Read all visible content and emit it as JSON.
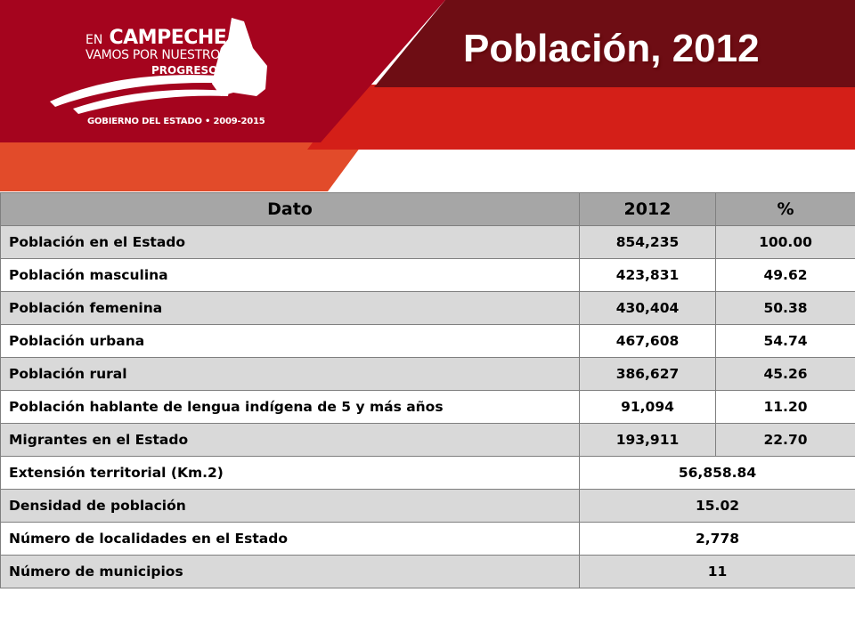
{
  "header": {
    "title": "Población, 2012",
    "logo": {
      "en": "EN",
      "campeche": "CAMPECHE",
      "line2": "VAMOS POR NUESTRO",
      "line3": "PROGRESO",
      "gobierno": "GOBIERNO DEL ESTADO • 2009-2015"
    }
  },
  "colors": {
    "dark_red": "#a5041e",
    "maroon": "#6e0d14",
    "bright_red": "#d41f18",
    "orange": "#e24b2a",
    "header_cell": "#a6a6a6",
    "row_shade": "#d9d9d9"
  },
  "table": {
    "headers": [
      "Dato",
      "2012",
      "%"
    ],
    "rows": [
      {
        "label": "Población en el  Estado",
        "value": "854,235",
        "pct": "100.00"
      },
      {
        "label": "Población masculina",
        "value": "423,831",
        "pct": "49.62"
      },
      {
        "label": "Población femenina",
        "value": "430,404",
        "pct": "50.38"
      },
      {
        "label": "Población urbana",
        "value": "467,608",
        "pct": "54.74"
      },
      {
        "label": "Población rural",
        "value": "386,627",
        "pct": "45.26"
      },
      {
        "label": "Población hablante de lengua indígena de 5 y más años",
        "value": "91,094",
        "pct": "11.20"
      },
      {
        "label": "Migrantes en el Estado",
        "value": "193,911",
        "pct": "22.70"
      },
      {
        "label": "Extensión territorial (Km.2)",
        "value": "56,858.84"
      },
      {
        "label": "Densidad de población",
        "value": "15.02"
      },
      {
        "label": "Número de localidades en el Estado",
        "value": "2,778"
      },
      {
        "label": "Número de municipios",
        "value": "11"
      }
    ]
  }
}
